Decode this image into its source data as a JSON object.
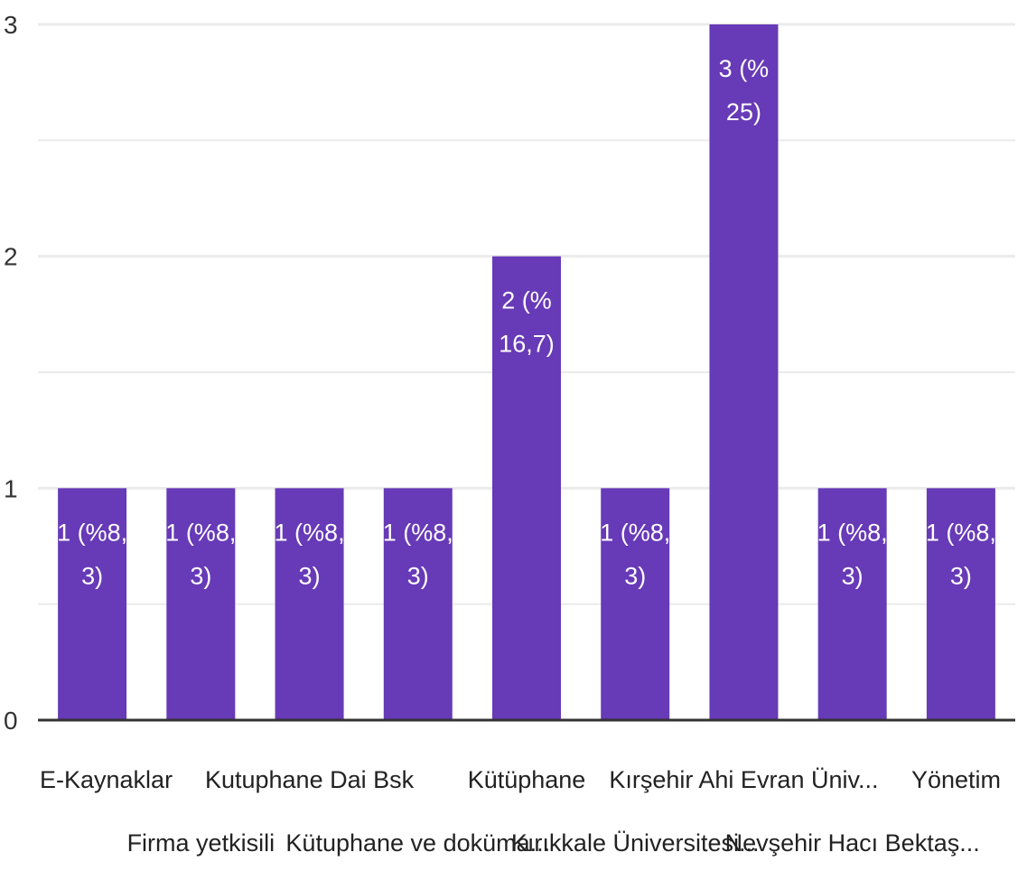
{
  "chart_data": {
    "type": "bar",
    "categories": [
      "E-Kaynaklar",
      "Firma yetkisili",
      "Kutuphane Dai Bsk",
      "Kütuphane ve doküma...",
      "Kütüphane",
      "Kırıkkale Üniversitesi...",
      "Kırşehir Ahi Evran Üniv...",
      "Nevşehir Hacı Bektaş...",
      "Yönetim"
    ],
    "values": [
      1,
      1,
      1,
      1,
      2,
      1,
      3,
      1,
      1
    ],
    "data_labels": [
      [
        "1 (%8,",
        "3)"
      ],
      [
        "1 (%8,",
        "3)"
      ],
      [
        "1 (%8,",
        "3)"
      ],
      [
        "1 (%8,",
        "3)"
      ],
      [
        "2 (%",
        "16,7)"
      ],
      [
        "1 (%8,",
        "3)"
      ],
      [
        "3 (%",
        "25)"
      ],
      [
        "1 (%8,",
        "3)"
      ],
      [
        "1 (%8,",
        "3)"
      ]
    ],
    "y_ticks": [
      "0",
      "1",
      "2",
      "3"
    ],
    "ylim": [
      0,
      3
    ],
    "grid": true,
    "title": "",
    "xlabel": "",
    "ylabel": "",
    "colors": {
      "bar": "#673ab7",
      "grid": "#ebebeb",
      "axis": "#333333"
    }
  }
}
